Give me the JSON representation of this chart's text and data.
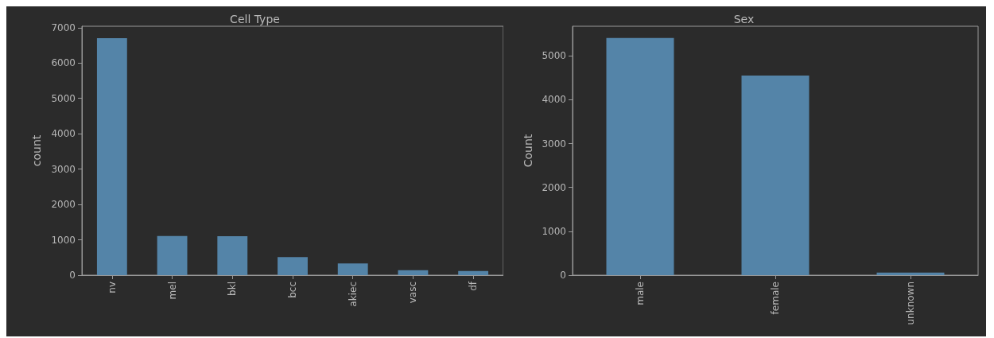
{
  "chart_data": [
    {
      "type": "bar",
      "title": "Cell Type",
      "ylabel": "count",
      "categories": [
        "nv",
        "mel",
        "bkl",
        "bcc",
        "akiec",
        "vasc",
        "df"
      ],
      "values": [
        6700,
        1110,
        1100,
        510,
        330,
        140,
        120
      ],
      "color": "#5484a8",
      "ylim": [
        0,
        7040
      ],
      "yticks": [
        0,
        1000,
        2000,
        3000,
        4000,
        5000,
        6000,
        7000
      ],
      "grid": false
    },
    {
      "type": "bar",
      "title": "Sex",
      "ylabel": "Count",
      "categories": [
        "male",
        "female",
        "unknown"
      ],
      "values": [
        5410,
        4550,
        60
      ],
      "color": "#5484a8",
      "ylim": [
        0,
        5676
      ],
      "yticks": [
        0,
        1000,
        2000,
        3000,
        4000,
        5000
      ],
      "grid": false
    }
  ]
}
